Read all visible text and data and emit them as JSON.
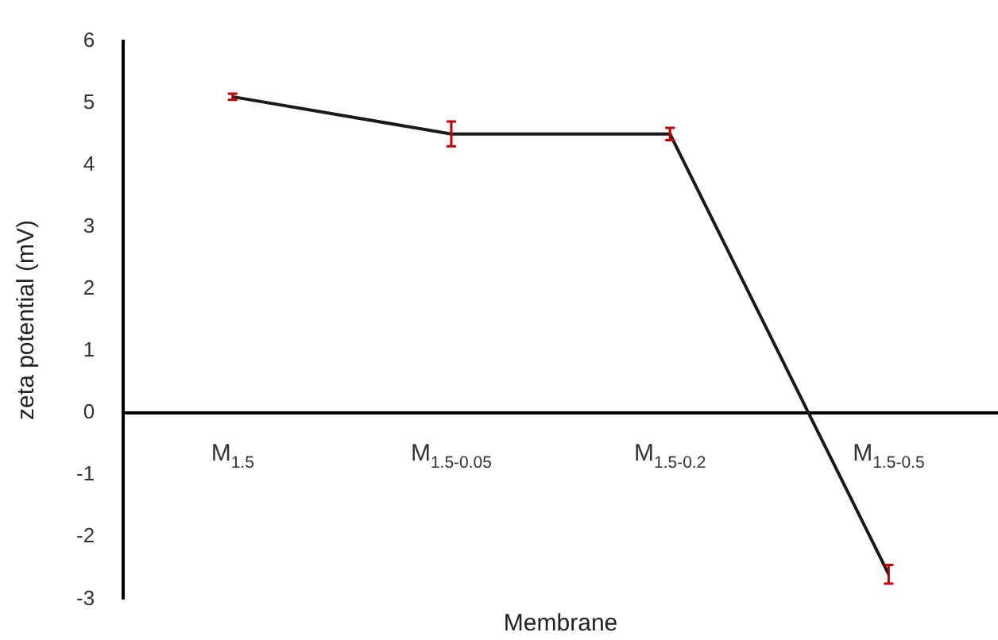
{
  "chart_data": {
    "type": "line",
    "xlabel": "Membrane",
    "ylabel": "zeta potential (mV)",
    "categories": [
      "M$_{1.5}$",
      "M$_{1.5-0.05}$",
      "M$_{1.5-0.2}$",
      "M$_{1.5-0.5}$"
    ],
    "series": [
      {
        "color": "#1a1a1a",
        "values": [
          5.1,
          4.5,
          4.5,
          -2.6
        ],
        "errors": [
          0.05,
          0.2,
          0.1,
          0.15
        ]
      }
    ],
    "ylim": [
      -3,
      6
    ],
    "yticks": [
      -3,
      -2,
      -1,
      0,
      1,
      2,
      3,
      4,
      5,
      6
    ],
    "grid": false,
    "legend": false,
    "line_style": "solid"
  }
}
